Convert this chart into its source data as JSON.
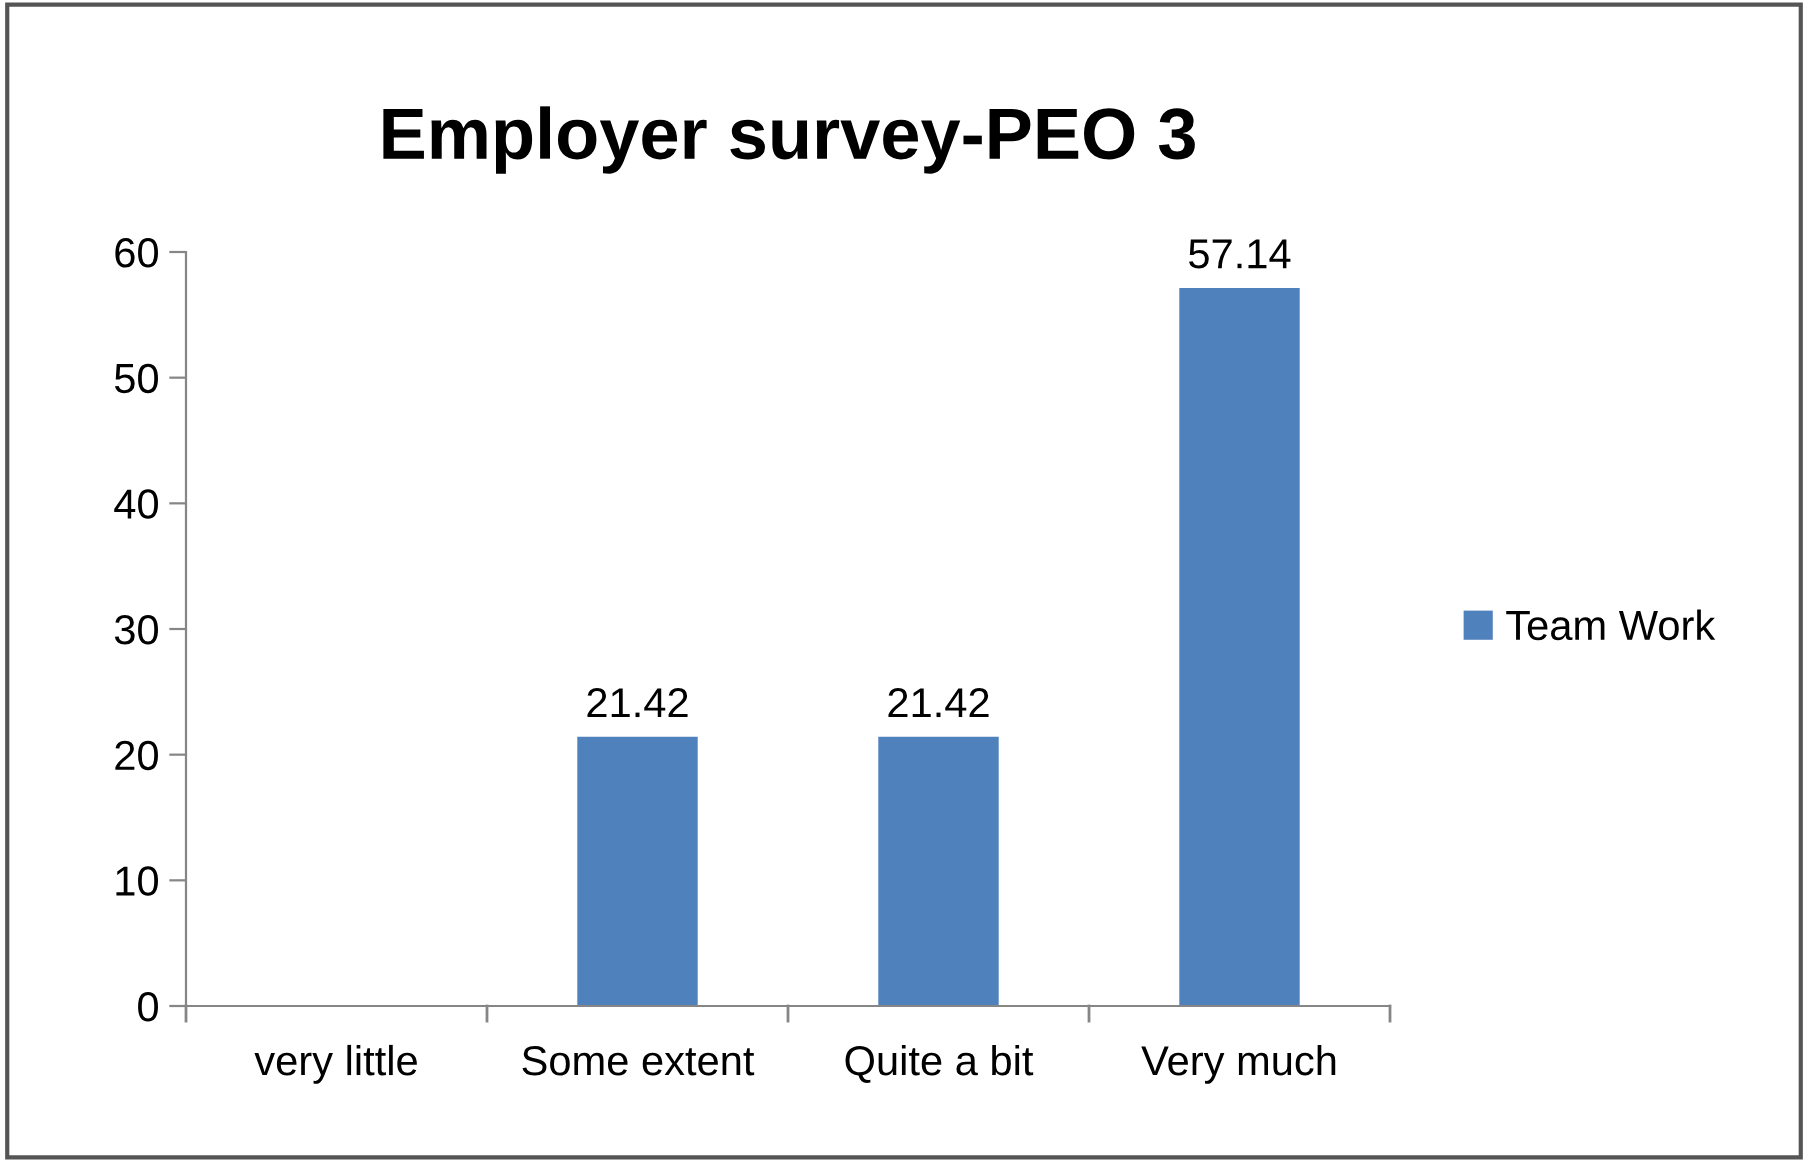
{
  "chart_data": {
    "type": "bar",
    "title": "Employer survey-PEO 3",
    "categories": [
      "very little",
      "Some extent",
      "Quite a bit",
      "Very much"
    ],
    "series": [
      {
        "name": "Team Work",
        "color": "#4f81bd",
        "values": [
          0,
          21.42,
          21.42,
          57.14
        ],
        "value_labels": [
          null,
          "21.42",
          "21.42",
          "57.14"
        ]
      }
    ],
    "ylim": [
      0,
      60
    ],
    "yticks": [
      0,
      10,
      20,
      30,
      40,
      50,
      60
    ],
    "grid": false,
    "legend": "right"
  }
}
